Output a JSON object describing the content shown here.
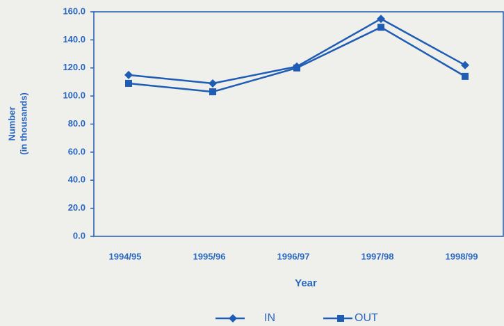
{
  "chart_data": {
    "type": "line",
    "ylabel": [
      "Number",
      "(in thousands)"
    ],
    "xlabel": "Year",
    "categories": [
      "1994/95",
      "1995/96",
      "1996/97",
      "1997/98",
      "1998/99"
    ],
    "series": [
      {
        "name": "IN",
        "color": "#1f5cb4",
        "marker": "diamond",
        "values": [
          115,
          109,
          121,
          155,
          122
        ]
      },
      {
        "name": "OUT",
        "color": "#1f5cb4",
        "marker": "square",
        "values": [
          109,
          103,
          120,
          149,
          114
        ]
      }
    ],
    "ylim": [
      0,
      160
    ],
    "yticks": [
      {
        "value": 0,
        "label": "0.0"
      },
      {
        "value": 20,
        "label": "20.0"
      },
      {
        "value": 40,
        "label": "40.0"
      },
      {
        "value": 60,
        "label": "60.0"
      },
      {
        "value": 80,
        "label": "80.0"
      },
      {
        "value": 100,
        "label": "100.0"
      },
      {
        "value": 120,
        "label": "120.0"
      },
      {
        "value": 140,
        "label": "140.0"
      },
      {
        "value": 160,
        "label": "160.0"
      }
    ],
    "grid": false,
    "legend": "bottom"
  }
}
